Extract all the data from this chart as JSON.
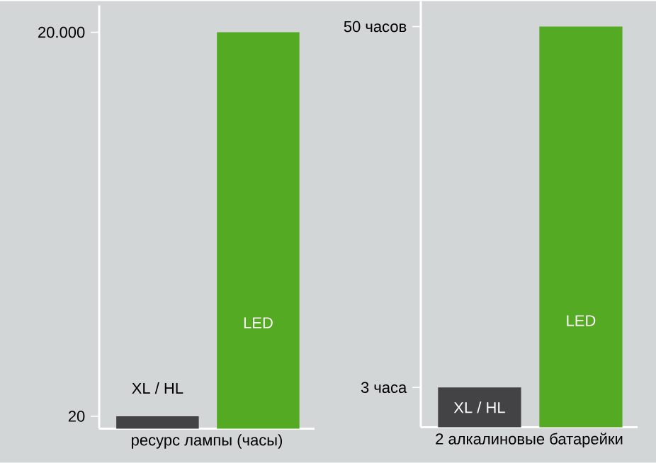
{
  "chart_data": [
    {
      "type": "bar",
      "xlabel": "ресурс лампы (часы)",
      "categories": [
        "XL / HL",
        "LED"
      ],
      "values": [
        20,
        20000
      ],
      "colors": [
        "#434345",
        "#55aa24"
      ],
      "ylim": [
        16,
        32500
      ],
      "log": true,
      "yticks": [
        20,
        {
          "value": 20000,
          "label": "20.000"
        }
      ],
      "grid": false
    },
    {
      "type": "bar",
      "xlabel": "2 алкалиновые батарейки",
      "categories": [
        "XL / HL",
        "LED"
      ],
      "values": [
        3,
        50
      ],
      "colors": [
        "#434345",
        "#55aa24"
      ],
      "ylim": [
        2.2,
        61
      ],
      "log": true,
      "yticks": [
        {
          "value": 3,
          "label": "3 часа"
        },
        {
          "value": 50,
          "label": "50 часов"
        }
      ],
      "grid": false
    }
  ]
}
